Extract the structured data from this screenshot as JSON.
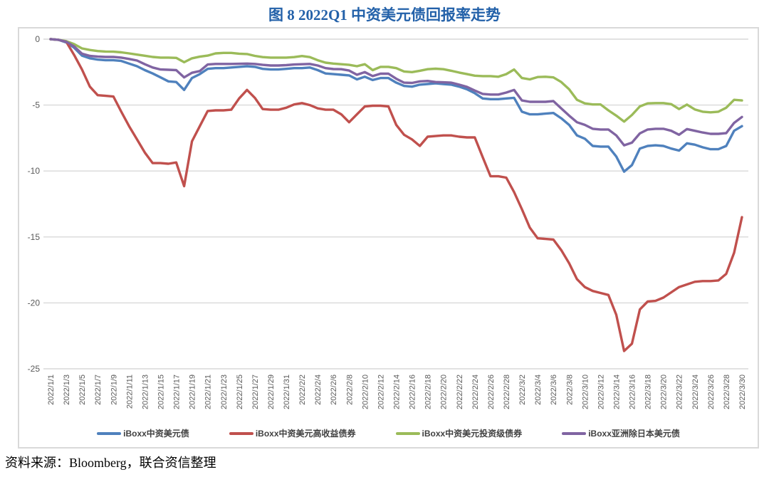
{
  "title": "图 8  2022Q1 中资美元债回报率走势",
  "source_note": "资料来源：Bloomberg，联合资信整理",
  "colors": {
    "title_text": "#2361A9",
    "grid_line": "#D9D9D9",
    "chart_border": "#D9D9D9",
    "axis_text": "#595959",
    "legend_text": "#404040",
    "source_text": "#000000"
  },
  "chart_data": {
    "type": "line",
    "title": "图 8  2022Q1 中资美元债回报率走势",
    "xlabel": "",
    "ylabel": "",
    "ylim": [
      -25,
      0
    ],
    "yticks": [
      0,
      -5,
      -10,
      -15,
      -20,
      -25
    ],
    "grid": true,
    "legend_position": "bottom",
    "x_label_every": 2,
    "x": [
      "2022/1/1",
      "2022/1/2",
      "2022/1/3",
      "2022/1/4",
      "2022/1/5",
      "2022/1/6",
      "2022/1/7",
      "2022/1/8",
      "2022/1/9",
      "2022/1/10",
      "2022/1/11",
      "2022/1/12",
      "2022/1/13",
      "2022/1/14",
      "2022/1/15",
      "2022/1/16",
      "2022/1/17",
      "2022/1/18",
      "2022/1/19",
      "2022/1/20",
      "2022/1/21",
      "2022/1/22",
      "2022/1/23",
      "2022/1/24",
      "2022/1/25",
      "2022/1/26",
      "2022/1/27",
      "2022/1/28",
      "2022/1/29",
      "2022/1/30",
      "2022/1/31",
      "2022/2/1",
      "2022/2/2",
      "2022/2/3",
      "2022/2/4",
      "2022/2/5",
      "2022/2/6",
      "2022/2/7",
      "2022/2/8",
      "2022/2/9",
      "2022/2/10",
      "2022/2/11",
      "2022/2/12",
      "2022/2/13",
      "2022/2/14",
      "2022/2/15",
      "2022/2/16",
      "2022/2/17",
      "2022/2/18",
      "2022/2/19",
      "2022/2/20",
      "2022/2/21",
      "2022/2/22",
      "2022/2/23",
      "2022/2/24",
      "2022/2/25",
      "2022/2/26",
      "2022/2/27",
      "2022/2/28",
      "2022/3/1",
      "2022/3/2",
      "2022/3/3",
      "2022/3/4",
      "2022/3/5",
      "2022/3/6",
      "2022/3/7",
      "2022/3/8",
      "2022/3/9",
      "2022/3/10",
      "2022/3/11",
      "2022/3/12",
      "2022/3/13",
      "2022/3/14",
      "2022/3/15",
      "2022/3/16",
      "2022/3/17",
      "2022/3/18",
      "2022/3/19",
      "2022/3/20",
      "2022/3/21",
      "2022/3/22",
      "2022/3/23",
      "2022/3/24",
      "2022/3/25",
      "2022/3/26",
      "2022/3/27",
      "2022/3/28",
      "2022/3/29",
      "2022/3/30"
    ],
    "series": [
      {
        "name": "iBoxx中资美元债",
        "color": "#4F81BD",
        "values": [
          0,
          -0.05,
          -0.25,
          -0.65,
          -1.25,
          -1.45,
          -1.55,
          -1.6,
          -1.6,
          -1.65,
          -1.85,
          -2.05,
          -2.35,
          -2.6,
          -2.9,
          -3.2,
          -3.25,
          -3.85,
          -2.95,
          -2.65,
          -2.25,
          -2.2,
          -2.2,
          -2.15,
          -2.1,
          -2.05,
          -2.1,
          -2.25,
          -2.3,
          -2.3,
          -2.25,
          -2.2,
          -2.2,
          -2.15,
          -2.35,
          -2.6,
          -2.65,
          -2.7,
          -2.75,
          -3.05,
          -2.85,
          -3.1,
          -2.95,
          -2.95,
          -3.3,
          -3.55,
          -3.6,
          -3.45,
          -3.4,
          -3.35,
          -3.4,
          -3.45,
          -3.6,
          -3.8,
          -4.1,
          -4.5,
          -4.55,
          -4.55,
          -4.5,
          -4.45,
          -5.5,
          -5.7,
          -5.7,
          -5.65,
          -5.6,
          -6.0,
          -6.5,
          -7.3,
          -7.55,
          -8.1,
          -8.15,
          -8.15,
          -8.9,
          -10.05,
          -9.55,
          -8.3,
          -8.1,
          -8.05,
          -8.1,
          -8.3,
          -8.45,
          -7.9,
          -8.0,
          -8.2,
          -8.35,
          -8.35,
          -8.1,
          -6.95,
          -6.6
        ]
      },
      {
        "name": "iBoxx中资美元高收益债券",
        "color": "#C0504D",
        "values": [
          0,
          -0.05,
          -0.2,
          -1.2,
          -2.3,
          -3.6,
          -4.25,
          -4.3,
          -4.35,
          -5.5,
          -6.6,
          -7.6,
          -8.6,
          -9.4,
          -9.4,
          -9.45,
          -9.35,
          -11.15,
          -7.75,
          -6.6,
          -5.45,
          -5.4,
          -5.4,
          -5.35,
          -4.5,
          -3.85,
          -4.45,
          -5.3,
          -5.35,
          -5.35,
          -5.2,
          -4.95,
          -4.85,
          -5.0,
          -5.25,
          -5.35,
          -5.35,
          -5.7,
          -6.3,
          -5.7,
          -5.1,
          -5.05,
          -5.05,
          -5.1,
          -6.5,
          -7.25,
          -7.6,
          -8.1,
          -7.4,
          -7.35,
          -7.3,
          -7.3,
          -7.4,
          -7.45,
          -7.45,
          -8.95,
          -10.4,
          -10.4,
          -10.5,
          -11.6,
          -12.9,
          -14.3,
          -15.1,
          -15.15,
          -15.2,
          -16.0,
          -17.0,
          -18.2,
          -18.8,
          -19.1,
          -19.25,
          -19.4,
          -20.9,
          -23.65,
          -23.1,
          -20.5,
          -19.9,
          -19.85,
          -19.6,
          -19.2,
          -18.8,
          -18.6,
          -18.4,
          -18.35,
          -18.35,
          -18.3,
          -17.8,
          -16.2,
          -13.5
        ]
      },
      {
        "name": "iBoxx中资美元投资级债券",
        "color": "#9BBB59",
        "values": [
          0,
          -0.05,
          -0.15,
          -0.38,
          -0.7,
          -0.82,
          -0.9,
          -0.94,
          -0.95,
          -1.0,
          -1.08,
          -1.17,
          -1.26,
          -1.35,
          -1.4,
          -1.4,
          -1.42,
          -1.75,
          -1.45,
          -1.33,
          -1.25,
          -1.08,
          -1.04,
          -1.04,
          -1.1,
          -1.13,
          -1.27,
          -1.36,
          -1.4,
          -1.4,
          -1.4,
          -1.36,
          -1.28,
          -1.36,
          -1.6,
          -1.78,
          -1.85,
          -1.9,
          -1.95,
          -2.05,
          -1.9,
          -2.35,
          -2.1,
          -2.1,
          -2.2,
          -2.45,
          -2.5,
          -2.4,
          -2.28,
          -2.24,
          -2.28,
          -2.4,
          -2.53,
          -2.65,
          -2.77,
          -2.8,
          -2.8,
          -2.85,
          -2.65,
          -2.3,
          -2.95,
          -3.05,
          -2.87,
          -2.85,
          -2.9,
          -3.25,
          -3.8,
          -4.6,
          -4.87,
          -4.95,
          -4.95,
          -5.4,
          -5.8,
          -6.25,
          -5.75,
          -5.1,
          -4.87,
          -4.85,
          -4.85,
          -4.93,
          -5.3,
          -4.96,
          -5.33,
          -5.5,
          -5.55,
          -5.5,
          -5.2,
          -4.6,
          -4.65
        ]
      },
      {
        "name": "iBoxx亚洲除日本美元债",
        "color": "#8064A2",
        "values": [
          0,
          -0.05,
          -0.2,
          -0.55,
          -1.1,
          -1.27,
          -1.32,
          -1.35,
          -1.35,
          -1.4,
          -1.5,
          -1.62,
          -1.9,
          -2.15,
          -2.3,
          -2.32,
          -2.35,
          -2.9,
          -2.55,
          -2.42,
          -1.92,
          -1.88,
          -1.88,
          -1.88,
          -1.87,
          -1.85,
          -1.88,
          -1.95,
          -2.0,
          -2.0,
          -1.97,
          -1.92,
          -1.9,
          -1.88,
          -2.0,
          -2.2,
          -2.27,
          -2.28,
          -2.38,
          -2.7,
          -2.5,
          -2.8,
          -2.62,
          -2.62,
          -3.0,
          -3.3,
          -3.32,
          -3.2,
          -3.17,
          -3.25,
          -3.27,
          -3.3,
          -3.45,
          -3.62,
          -3.9,
          -4.15,
          -4.2,
          -4.2,
          -4.05,
          -3.85,
          -4.65,
          -4.75,
          -4.75,
          -4.75,
          -4.7,
          -5.25,
          -5.8,
          -6.3,
          -6.5,
          -6.8,
          -6.85,
          -6.85,
          -7.3,
          -8.05,
          -7.85,
          -7.15,
          -6.85,
          -6.8,
          -6.8,
          -6.95,
          -7.25,
          -6.82,
          -6.95,
          -7.08,
          -7.18,
          -7.18,
          -7.13,
          -6.35,
          -5.9
        ]
      }
    ]
  }
}
